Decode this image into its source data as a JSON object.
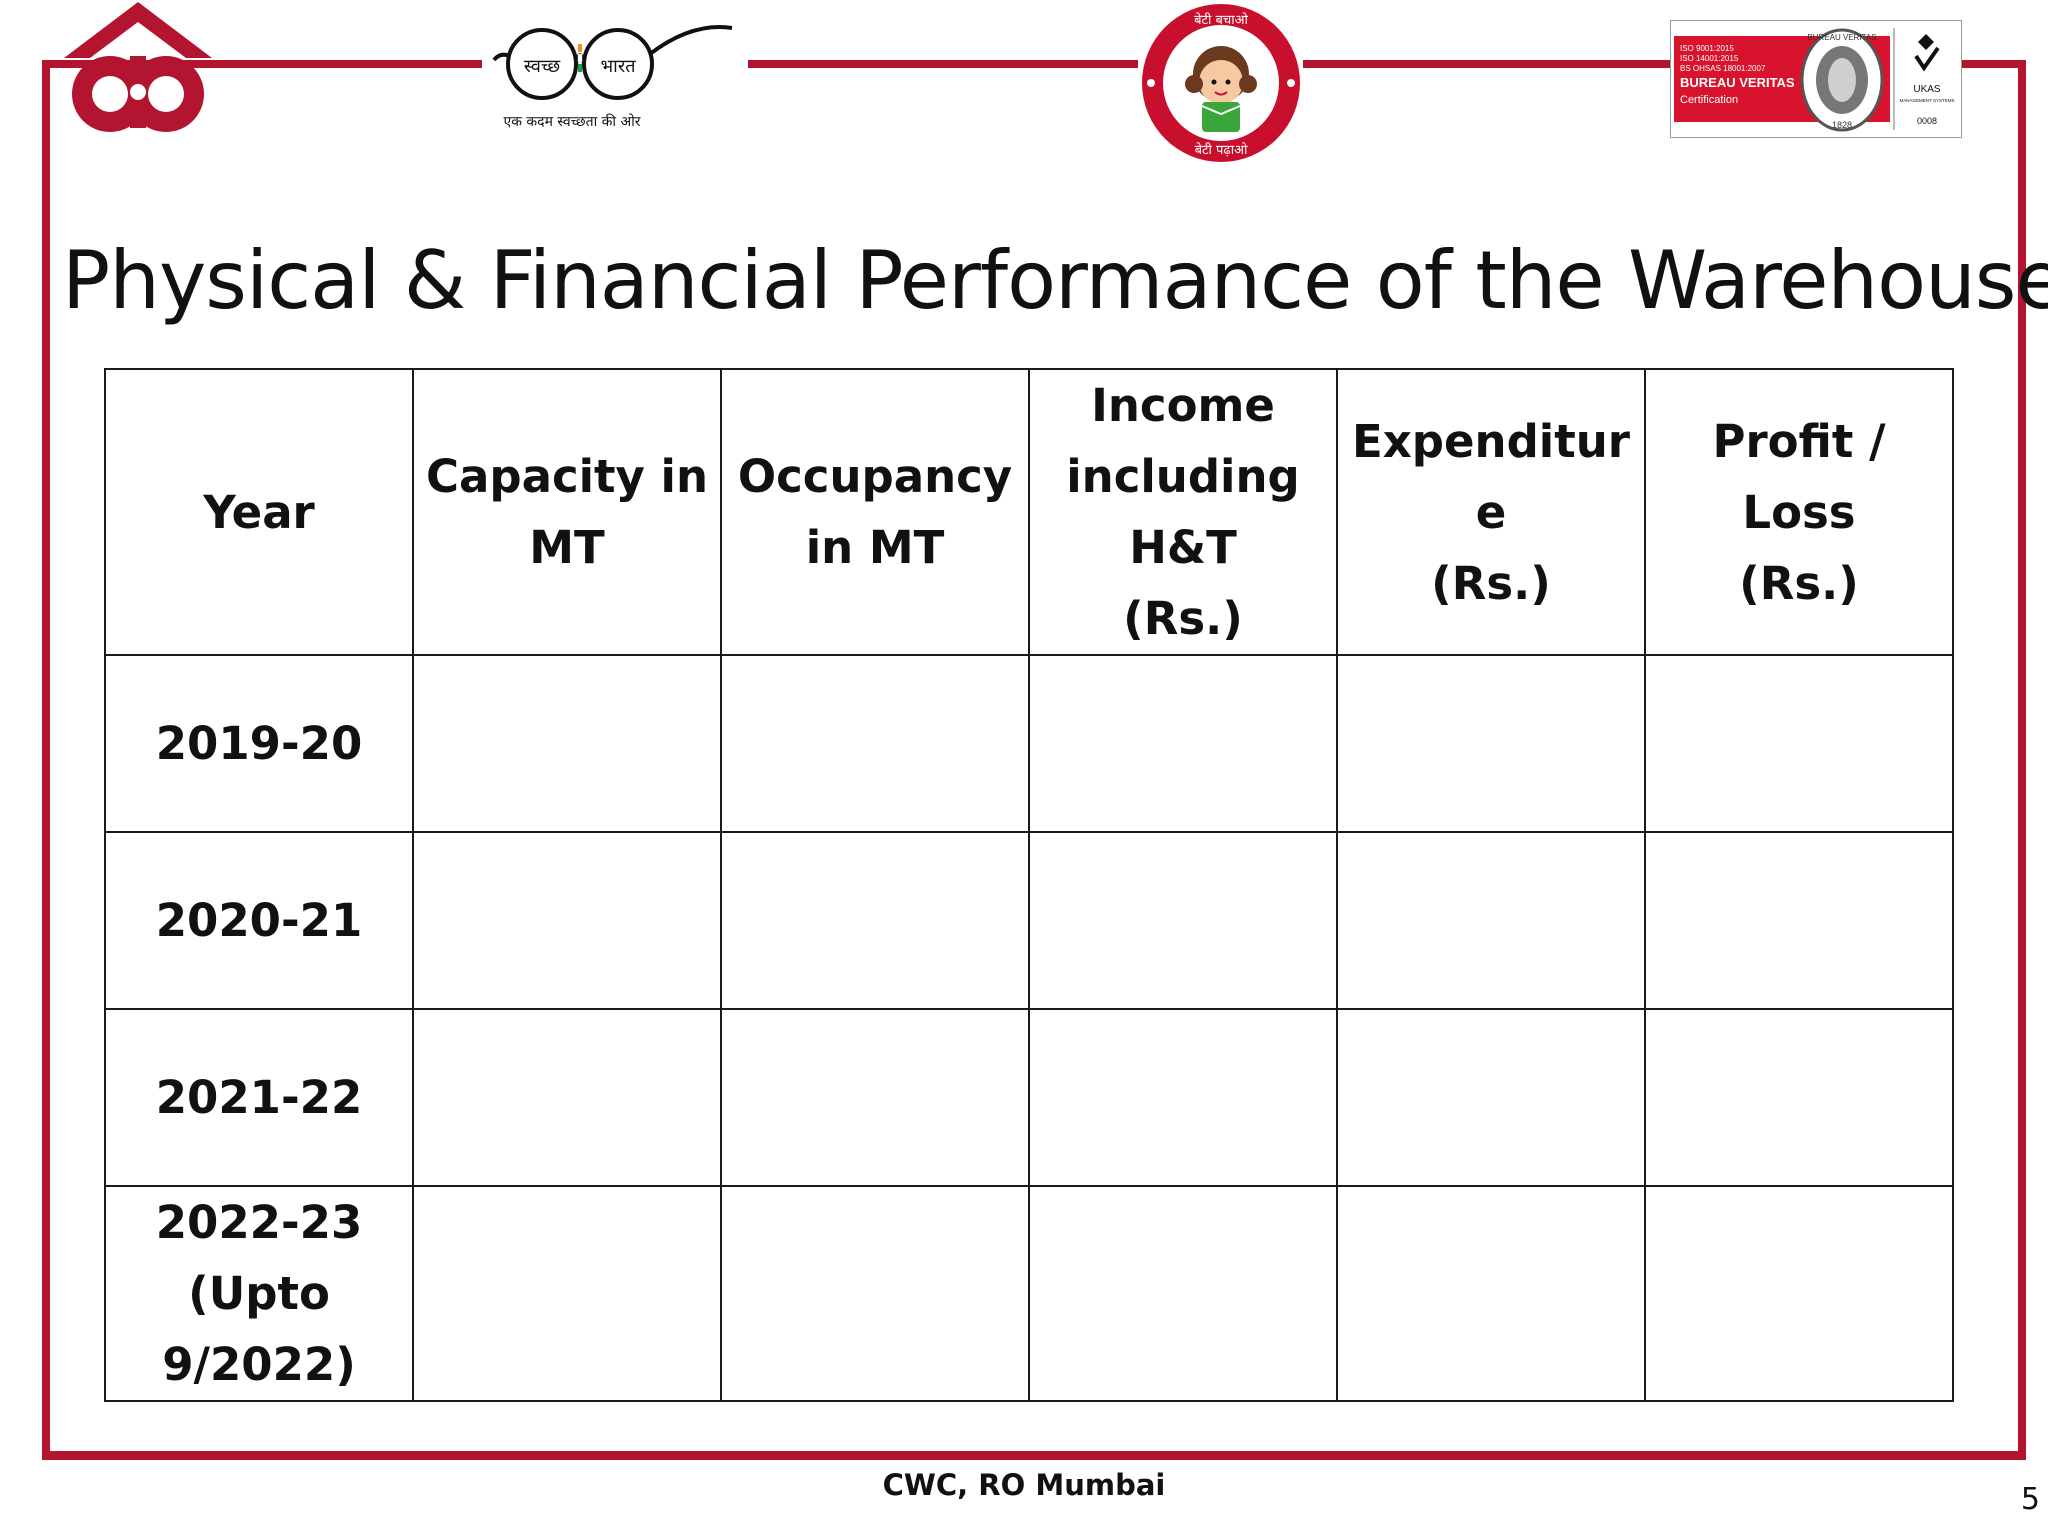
{
  "title": "Physical & Financial Performance of the Warehouse",
  "logos": {
    "swachh_left": "स्वच्छ",
    "swachh_right": "भारत",
    "swachh_tagline": "एक कदम स्वच्छता की ओर",
    "beti_top": "बेटी बचाओ",
    "beti_bottom": "बेटी पढ़ाओ",
    "bv_lines": [
      "ISO 9001:2015",
      "ISO 14001:2015",
      "BS OHSAS 18001:2007"
    ],
    "bv_name": "BUREAU VERITAS",
    "bv_cert": "Certification",
    "bv_ring": "BUREAU VERITAS",
    "bv_year": "1828",
    "ukas": "UKAS",
    "ukas_sub": "MANAGEMENT SYSTEMS",
    "ukas_num": "0008"
  },
  "table": {
    "headers": [
      [
        "Year"
      ],
      [
        "Capacity in",
        "MT"
      ],
      [
        "Occupancy",
        "in MT"
      ],
      [
        "Income",
        "including",
        "H&T",
        "(Rs.)"
      ],
      [
        "Expenditur",
        "e",
        "(Rs.)"
      ],
      [
        "Profit / Loss",
        "(Rs.)"
      ]
    ],
    "rows": [
      {
        "year": [
          "2019-20"
        ],
        "cells": [
          "",
          "",
          "",
          "",
          ""
        ]
      },
      {
        "year": [
          "2020-21"
        ],
        "cells": [
          "",
          "",
          "",
          "",
          ""
        ]
      },
      {
        "year": [
          "2021-22"
        ],
        "cells": [
          "",
          "",
          "",
          "",
          ""
        ]
      },
      {
        "year": [
          "2022-23",
          "(Upto",
          "9/2022)"
        ],
        "cells": [
          "",
          "",
          "",
          "",
          ""
        ]
      }
    ]
  },
  "footer": "CWC, RO Mumbai",
  "page_number": "5",
  "colors": {
    "frame": "#b3142f",
    "text": "#111111"
  }
}
